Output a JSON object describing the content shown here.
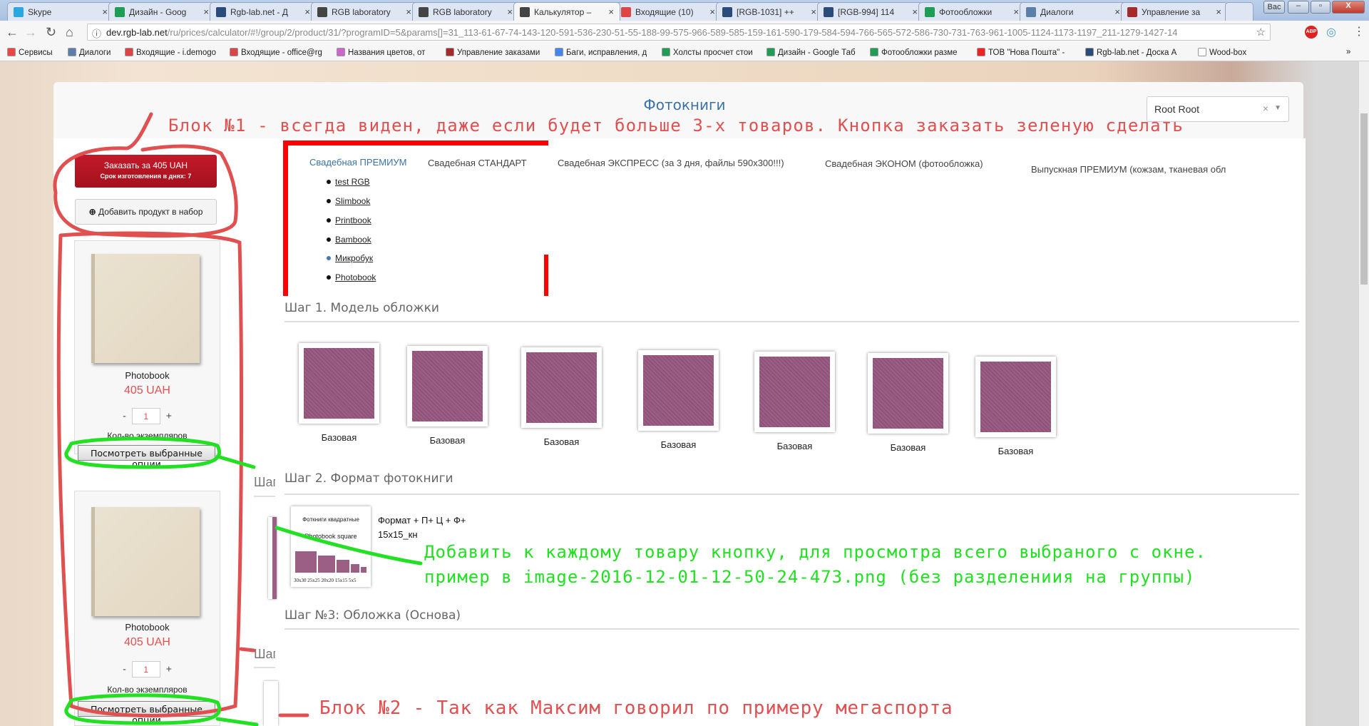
{
  "browser": {
    "tabs": [
      {
        "label": "Skype",
        "icon": "skype-icon",
        "color": "#2aa7e0"
      },
      {
        "label": "Дизайн - Goog",
        "icon": "sheets-icon",
        "color": "#1f9d55"
      },
      {
        "label": "Rgb-lab.net - Д",
        "icon": "jira-icon",
        "color": "#2a4c7a"
      },
      {
        "label": "RGB laboratory",
        "icon": "rgb-icon",
        "color": "#444"
      },
      {
        "label": "RGB laboratory",
        "icon": "rgb-icon",
        "color": "#444"
      },
      {
        "label": "Калькулятор –",
        "icon": "rgb-icon",
        "color": "#444",
        "active": true
      },
      {
        "label": "Входящие (10)",
        "icon": "gmail-icon",
        "color": "#d44"
      },
      {
        "label": "[RGB-1031] ++",
        "icon": "jira-icon",
        "color": "#2a4c7a"
      },
      {
        "label": "[RGB-994] 114",
        "icon": "jira-icon",
        "color": "#2a4c7a"
      },
      {
        "label": "Фотообложки",
        "icon": "sheets-icon",
        "color": "#1f9d55"
      },
      {
        "label": "Диалоги",
        "icon": "dialogs-icon",
        "color": "#5b7fa8"
      },
      {
        "label": "Управление за",
        "icon": "m-icon",
        "color": "#a52a2a"
      }
    ],
    "profile": "Вас",
    "url_host": "dev.rgb-lab.net",
    "url_path": "/ru/prices/calculator/#!/group/2/product/31/?programID=5&params[]=31_113-61-67-74-143-120-591-536-230-51-55-188-99-575-966-589-585-159-161-590-179-584-594-766-565-572-586-730-731-763-961-1005-1124-1173-1197_211-1279-1427-14",
    "bookmarks": [
      {
        "label": "Сервисы",
        "color": "#e44"
      },
      {
        "label": "Диалоги",
        "color": "#5b7fa8"
      },
      {
        "label": "Входящие - i.demogo",
        "color": "#d44"
      },
      {
        "label": "Входящие - office@rg",
        "color": "#d44"
      },
      {
        "label": "Названия цветов, от",
        "color": "#c6c"
      },
      {
        "label": "Управление заказами",
        "color": "#a52a2a"
      },
      {
        "label": "Баги, исправления, д",
        "color": "#4285f4"
      },
      {
        "label": "Холсты просчет стои",
        "color": "#1f9d55"
      },
      {
        "label": "Дизайн - Google Таб",
        "color": "#1f9d55"
      },
      {
        "label": "Фотообложки разме",
        "color": "#1f9d55"
      },
      {
        "label": "ТОВ \"Нова Пошта\" -",
        "color": "#e22"
      },
      {
        "label": "Rgb-lab.net - Доска А",
        "color": "#2a4c7a"
      },
      {
        "label": "Wood-box",
        "color": "#fff"
      }
    ],
    "more": "»"
  },
  "page": {
    "title": "Фотокниги",
    "user_select": "Root Root",
    "order_button": "Заказать за 405 UAH",
    "order_term": "Срок изготовления в днях: 7",
    "add_product": "Добавить продукт в набор",
    "cart": [
      {
        "name": "Photobook",
        "price": "405 UAH",
        "qty": "1",
        "qty_label": "Кол-во экземпляров",
        "view_button": "Посмотреть выбранные опции"
      },
      {
        "name": "Photobook",
        "price": "405 UAH",
        "qty": "1",
        "qty_label": "Кол-во экземпляров",
        "view_button": "Посмотреть выбранные опции"
      }
    ],
    "program_tabs": [
      "Свадебная ПРЕМИУМ",
      "Свадебная СТАНДАРТ",
      "Свадебная ЭКСПРЕСС (за 3 дня, файлы 590x300!!!)",
      "Свадебная ЭКОНОМ (фотообложка)",
      "Выпускная ПРЕМИУМ (кожзам, тканевая обл"
    ],
    "products": [
      "test RGB",
      "Slimbook",
      "Printbook",
      "Bambook",
      "Микробук",
      "Photobook"
    ],
    "step1": "Шаг 1. Модель обложки",
    "covers": [
      "Базовая",
      "Базовая",
      "Базовая",
      "Базовая",
      "Базовая",
      "Базовая",
      "Базовая"
    ],
    "step2": "Шаг 2. Формат фотокниги",
    "format_image": {
      "title": "Фоткниги квадратные",
      "subtitle": "Photobook square",
      "sizes": [
        "30x30",
        "25x25",
        "20x20",
        "15x15",
        "5x5"
      ]
    },
    "format_label": "Формат + П+ Ц + Ф+",
    "format_value": "15x15_кн",
    "step3": "Шаг №3: Обложка (Основа)",
    "cut_heading": "Шаг"
  },
  "annotations": {
    "block1": "Блок №1 - всегда виден, даже если будет больше 3-х товаров. Кнопка заказать зеленую сделать",
    "green_line1": "Добавить к каждому товару кнопку, для просмотра всего выбраного с окне.",
    "green_line2": "пример в image-2016-12-01-12-50-24-473.png (без разделениия на группы)",
    "block2": "Блок №2 - Так как Максим говорил по примеру мегаспорта",
    "red": "#e05050",
    "green": "#22e022"
  }
}
